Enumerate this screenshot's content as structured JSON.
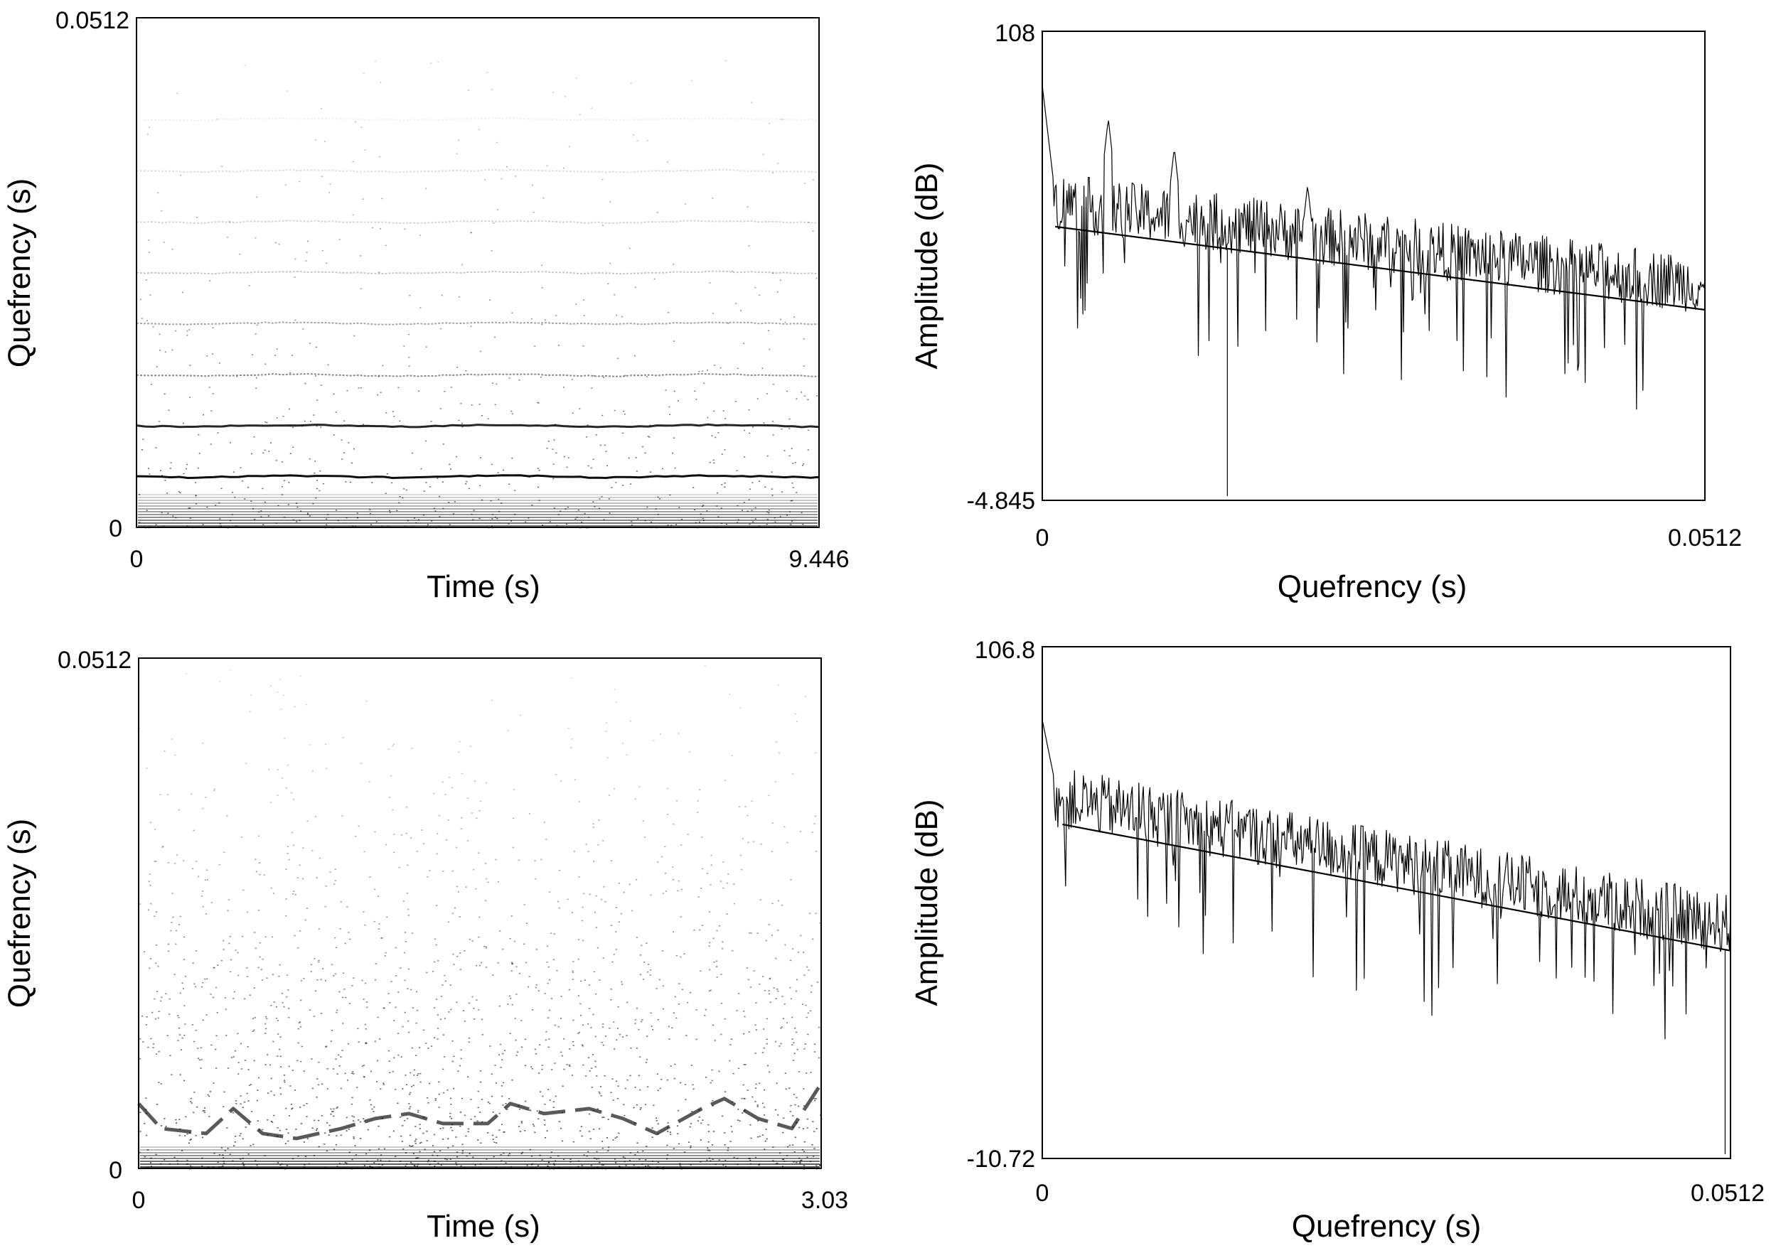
{
  "chart_data": [
    {
      "id": "spectrogram-top",
      "type": "heatmap",
      "title": "",
      "xlabel": "Time (s)",
      "ylabel": "Quefrency (s)",
      "xlim": [
        0,
        9.446
      ],
      "ylim": [
        0,
        0.0512
      ],
      "x_tick_labels": [
        "0",
        "9.446"
      ],
      "y_tick_labels": [
        "0",
        "0.0512"
      ],
      "grid": false,
      "colormap": "grayscale (white low, black high)",
      "bands": [
        {
          "quefrency": 0.0051,
          "darkness": 0.95
        },
        {
          "quefrency": 0.0102,
          "darkness": 0.85
        },
        {
          "quefrency": 0.0153,
          "darkness": 0.45
        },
        {
          "quefrency": 0.0205,
          "darkness": 0.35
        },
        {
          "quefrency": 0.0256,
          "darkness": 0.22
        },
        {
          "quefrency": 0.0307,
          "darkness": 0.16
        },
        {
          "quefrency": 0.0358,
          "darkness": 0.12
        },
        {
          "quefrency": 0.041,
          "darkness": 0.06
        }
      ],
      "noise_level": 0.18
    },
    {
      "id": "cepstrum-top",
      "type": "line",
      "title": "",
      "xlabel": "Quefrency (s)",
      "ylabel": "Amplitude (dB)",
      "xlim": [
        0,
        0.0512
      ],
      "ylim": [
        -4.845,
        108
      ],
      "x_tick_labels": [
        "0",
        "0.0512"
      ],
      "y_tick_labels": [
        "-4.845",
        "108"
      ],
      "grid": false,
      "trend_line": {
        "x": [
          0.001,
          0.0512
        ],
        "y": [
          61,
          41
        ]
      },
      "peaks": [
        {
          "x": 0.0051,
          "y": 87
        },
        {
          "x": 0.0102,
          "y": 80
        },
        {
          "x": 0.0205,
          "y": 71
        }
      ],
      "series": [
        {
          "values_source": "cepstrum",
          "start": 95,
          "min": -4.845,
          "noise": 14
        }
      ]
    },
    {
      "id": "spectrogram-bottom",
      "type": "heatmap",
      "title": "",
      "xlabel": "Time (s)",
      "ylabel": "Quefrency (s)",
      "xlim": [
        0,
        3.03
      ],
      "ylim": [
        0,
        0.0512
      ],
      "x_tick_labels": [
        "0",
        "3.03"
      ],
      "y_tick_labels": [
        "0",
        "0.0512"
      ],
      "grid": false,
      "colormap": "grayscale (white low, black high)",
      "contours": [
        {
          "t": [
            0.0,
            0.1,
            0.3,
            0.42,
            0.55,
            0.7,
            0.9,
            1.05,
            1.2,
            1.35,
            1.55,
            1.65,
            1.8,
            2.0,
            2.15,
            2.3,
            2.5,
            2.6,
            2.75,
            2.9,
            3.03
          ],
          "q": [
            0.0065,
            0.004,
            0.0035,
            0.006,
            0.0035,
            0.003,
            0.004,
            0.005,
            0.0055,
            0.0045,
            0.0045,
            0.0065,
            0.0055,
            0.006,
            0.005,
            0.0035,
            0.006,
            0.007,
            0.005,
            0.004,
            0.0085
          ]
        }
      ],
      "noise_level": 0.28
    },
    {
      "id": "cepstrum-bottom",
      "type": "line",
      "title": "",
      "xlabel": "Quefrency (s)",
      "ylabel": "Amplitude (dB)",
      "xlim": [
        0,
        0.0512
      ],
      "ylim": [
        -10.72,
        106.8
      ],
      "x_tick_labels": [
        "0",
        "0.0512"
      ],
      "y_tick_labels": [
        "-10.72",
        "106.8"
      ],
      "grid": false,
      "trend_line": {
        "x": [
          0.0015,
          0.0512
        ],
        "y": [
          66,
          37
        ]
      },
      "peaks": [
        {
          "x": 0.0035,
          "y": 71
        }
      ],
      "series": [
        {
          "values_source": "cepstrum",
          "start": 90,
          "min": -10.72,
          "noise": 14
        }
      ]
    }
  ],
  "colors": {
    "ink": "#000000",
    "background": "#ffffff"
  }
}
